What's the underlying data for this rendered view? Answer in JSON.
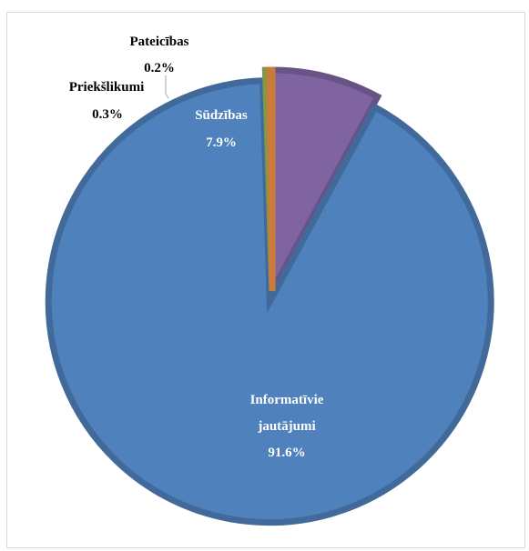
{
  "chart_data": {
    "type": "pie",
    "title": "",
    "slices": [
      {
        "name": "Sūdzības",
        "value": 7.9,
        "label": "7.9%",
        "color": "#8064a2"
      },
      {
        "name": "Informatīvie jautājumi",
        "name_lines": [
          "Informatīvie",
          "jautājumi"
        ],
        "value": 91.6,
        "label": "91.6%",
        "color": "#4f81bd"
      },
      {
        "name": "Priekšlikumi",
        "value": 0.3,
        "label": "0.3%",
        "color": "#9bbb59"
      },
      {
        "name": "Pateicības",
        "value": 0.2,
        "label": "0.2%",
        "color": "#f79646"
      }
    ],
    "start_angle": "12 o'clock",
    "direction": "clockwise",
    "exploded_slice": "Informatīvie jautājumi"
  }
}
